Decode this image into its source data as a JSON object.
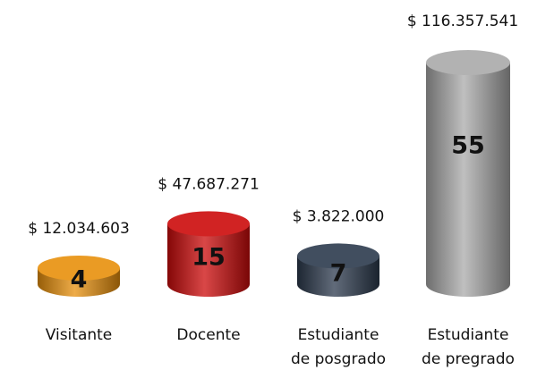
{
  "chart_data": {
    "type": "cylinder",
    "categories": [
      "Visitante",
      "Docente",
      "Estudiante\nde posgrado",
      "Estudiante\nde pregrado"
    ],
    "values": [
      4,
      15,
      7,
      55
    ],
    "annotations": [
      "$ 12.034.603",
      "$ 47.687.271",
      "$ 3.822.000",
      "$ 116.357.541"
    ],
    "colors": [
      "#e8900c",
      "#cc0a0a",
      "#2c3a4d",
      "#a9a9a9"
    ]
  }
}
